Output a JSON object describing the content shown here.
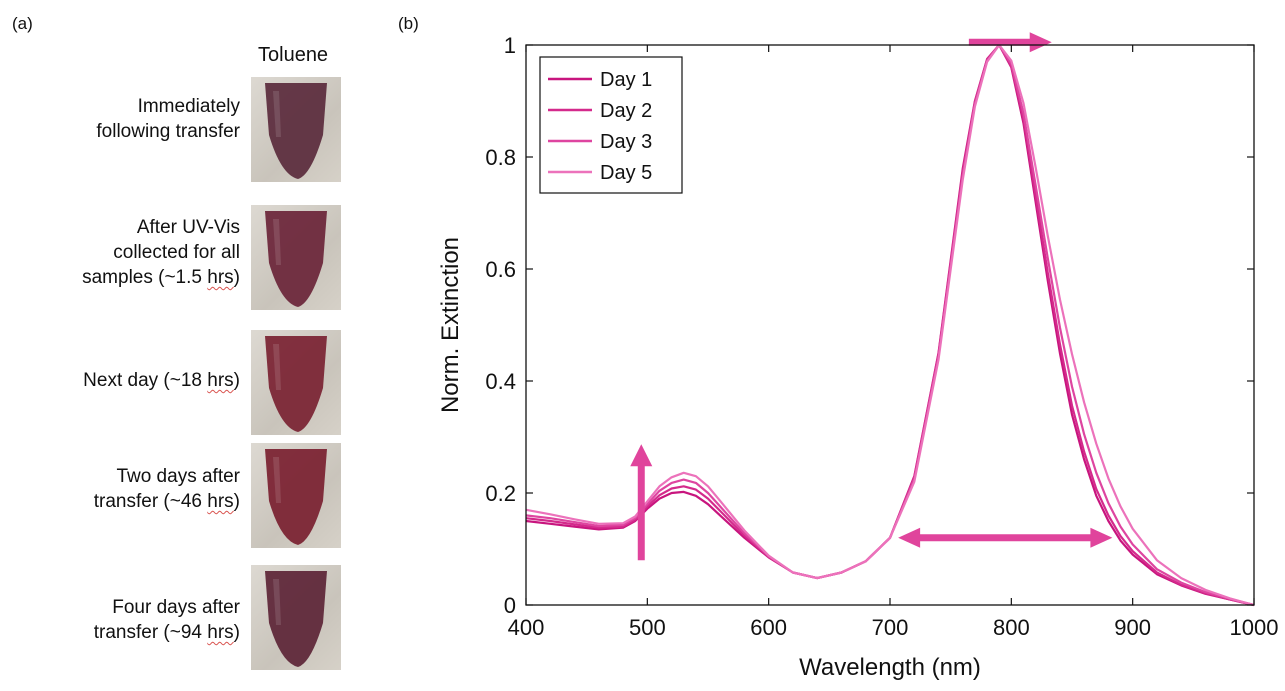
{
  "panel_a": {
    "letter": "(a)",
    "column_header": "Toluene",
    "rows": [
      {
        "lines": [
          "Immediately",
          "following transfer"
        ],
        "tint": "#5a2a3c"
      },
      {
        "lines": [
          "After UV-Vis",
          "collected for all",
          "samples (~1.5 hrs)"
        ],
        "tint": "#6a2438"
      },
      {
        "lines": [
          "Next day (~18 hrs)"
        ],
        "tint": "#7a2232"
      },
      {
        "lines": [
          "Two days after",
          "transfer (~46 hrs)"
        ],
        "tint": "#7a2030"
      },
      {
        "lines": [
          "Four days after",
          "transfer (~94 hrs)"
        ],
        "tint": "#5c2436"
      }
    ]
  },
  "panel_b": {
    "letter": "(b)"
  },
  "chart_data": {
    "type": "line",
    "xlabel": "Wavelength (nm)",
    "ylabel": "Norm. Extinction",
    "xlim": [
      400,
      1000
    ],
    "ylim": [
      0,
      1
    ],
    "x_ticks": [
      "400",
      "500",
      "600",
      "700",
      "800",
      "900",
      "1000"
    ],
    "y_ticks": [
      "0",
      "0.2",
      "0.4",
      "0.6",
      "0.8",
      "1"
    ],
    "grid": false,
    "legend_position": "top-left",
    "x": [
      400,
      420,
      440,
      460,
      480,
      490,
      500,
      510,
      520,
      530,
      540,
      550,
      560,
      580,
      600,
      620,
      640,
      660,
      680,
      700,
      720,
      740,
      760,
      770,
      780,
      790,
      800,
      810,
      820,
      830,
      840,
      850,
      860,
      870,
      880,
      890,
      900,
      920,
      940,
      960,
      980,
      1000
    ],
    "series": [
      {
        "name": "Day 1",
        "color": "#c8157e",
        "values": [
          0.15,
          0.145,
          0.14,
          0.135,
          0.138,
          0.15,
          0.172,
          0.19,
          0.2,
          0.202,
          0.195,
          0.18,
          0.16,
          0.12,
          0.085,
          0.058,
          0.048,
          0.058,
          0.078,
          0.12,
          0.23,
          0.45,
          0.78,
          0.9,
          0.975,
          1.0,
          0.96,
          0.86,
          0.72,
          0.58,
          0.45,
          0.34,
          0.26,
          0.195,
          0.15,
          0.115,
          0.09,
          0.055,
          0.035,
          0.02,
          0.01,
          0.0
        ]
      },
      {
        "name": "Day 2",
        "color": "#d42a8c",
        "values": [
          0.155,
          0.15,
          0.144,
          0.138,
          0.14,
          0.152,
          0.176,
          0.196,
          0.208,
          0.212,
          0.206,
          0.19,
          0.168,
          0.124,
          0.086,
          0.058,
          0.048,
          0.058,
          0.078,
          0.12,
          0.228,
          0.448,
          0.775,
          0.898,
          0.974,
          1.0,
          0.962,
          0.868,
          0.732,
          0.594,
          0.466,
          0.356,
          0.274,
          0.207,
          0.16,
          0.123,
          0.096,
          0.058,
          0.036,
          0.021,
          0.01,
          0.0
        ]
      },
      {
        "name": "Day 3",
        "color": "#de45a0",
        "values": [
          0.16,
          0.155,
          0.148,
          0.141,
          0.143,
          0.155,
          0.18,
          0.204,
          0.218,
          0.224,
          0.218,
          0.2,
          0.176,
          0.128,
          0.087,
          0.058,
          0.048,
          0.058,
          0.078,
          0.12,
          0.225,
          0.444,
          0.768,
          0.895,
          0.972,
          1.0,
          0.966,
          0.878,
          0.75,
          0.62,
          0.496,
          0.39,
          0.305,
          0.236,
          0.182,
          0.14,
          0.108,
          0.064,
          0.04,
          0.023,
          0.011,
          0.0
        ]
      },
      {
        "name": "Day 5",
        "color": "#ec72bb",
        "values": [
          0.17,
          0.162,
          0.153,
          0.145,
          0.146,
          0.158,
          0.185,
          0.212,
          0.228,
          0.236,
          0.23,
          0.212,
          0.186,
          0.133,
          0.088,
          0.058,
          0.048,
          0.058,
          0.078,
          0.12,
          0.22,
          0.438,
          0.76,
          0.89,
          0.97,
          1.0,
          0.972,
          0.896,
          0.782,
          0.66,
          0.546,
          0.448,
          0.362,
          0.288,
          0.226,
          0.176,
          0.136,
          0.08,
          0.048,
          0.027,
          0.012,
          0.0
        ]
      }
    ],
    "annotations": [
      {
        "kind": "arrow-up",
        "x": 495,
        "y_from": 0.08,
        "y_to": 0.28,
        "color": "#e0449c"
      },
      {
        "kind": "arrow-right",
        "x_from": 765,
        "x_to": 830,
        "y": 1.005,
        "color": "#e0449c"
      },
      {
        "kind": "arrow-double",
        "x_from": 710,
        "x_to": 880,
        "y": 0.12,
        "color": "#e0449c"
      }
    ]
  }
}
